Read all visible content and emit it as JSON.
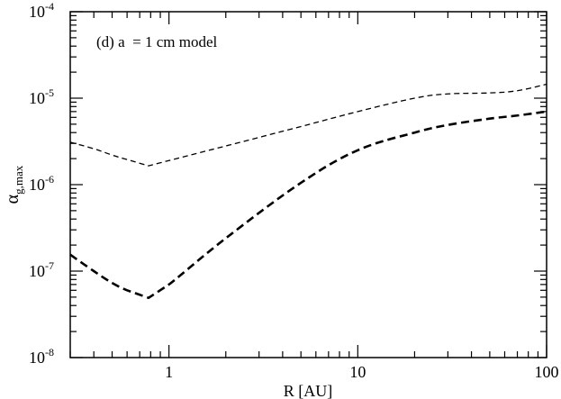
{
  "chart_data": {
    "type": "line",
    "annotation": "(d) a  = 1 cm model",
    "xlabel": "R [AU]",
    "ylabel_main": "α",
    "ylabel_sub": "g,max",
    "xscale": "log",
    "yscale": "log",
    "xlim": [
      0.3,
      100
    ],
    "ylim": [
      1e-08,
      0.0001
    ],
    "grid": false,
    "x_ticks": [
      {
        "value": 1,
        "label": "1"
      },
      {
        "value": 10,
        "label": "10"
      },
      {
        "value": 100,
        "label": "100"
      }
    ],
    "y_ticks": [
      {
        "value": 1e-08,
        "base": "10",
        "exp": "-8"
      },
      {
        "value": 1e-07,
        "base": "10",
        "exp": "-7"
      },
      {
        "value": 1e-06,
        "base": "10",
        "exp": "-6"
      },
      {
        "value": 1e-05,
        "base": "10",
        "exp": "-5"
      },
      {
        "value": 0.0001,
        "base": "10",
        "exp": "-4"
      }
    ],
    "series": [
      {
        "style": "thin-dashed",
        "color": "#000000",
        "x": [
          0.3,
          0.4,
          0.5,
          0.6,
          0.78,
          1.0,
          2.0,
          5.0,
          10.0,
          20.0,
          30.0,
          50.0,
          70.0,
          100.0
        ],
        "y": [
          3.1e-06,
          2.6e-06,
          2.2e-06,
          1.95e-06,
          1.65e-06,
          1.9e-06,
          2.8e-06,
          4.7e-06,
          7e-06,
          1e-05,
          1.12e-05,
          1.15e-05,
          1.22e-05,
          1.45e-05
        ]
      },
      {
        "style": "thick-dashed",
        "color": "#000000",
        "x": [
          0.3,
          0.4,
          0.5,
          0.6,
          0.78,
          1.0,
          2.0,
          5.0,
          10.0,
          20.0,
          30.0,
          50.0,
          70.0,
          100.0
        ],
        "y": [
          1.55e-07,
          1e-07,
          7.3e-08,
          6e-08,
          4.9e-08,
          7e-08,
          2.4e-07,
          1.05e-06,
          2.5e-06,
          4e-06,
          4.9e-06,
          5.8e-06,
          6.3e-06,
          7e-06
        ]
      }
    ]
  }
}
